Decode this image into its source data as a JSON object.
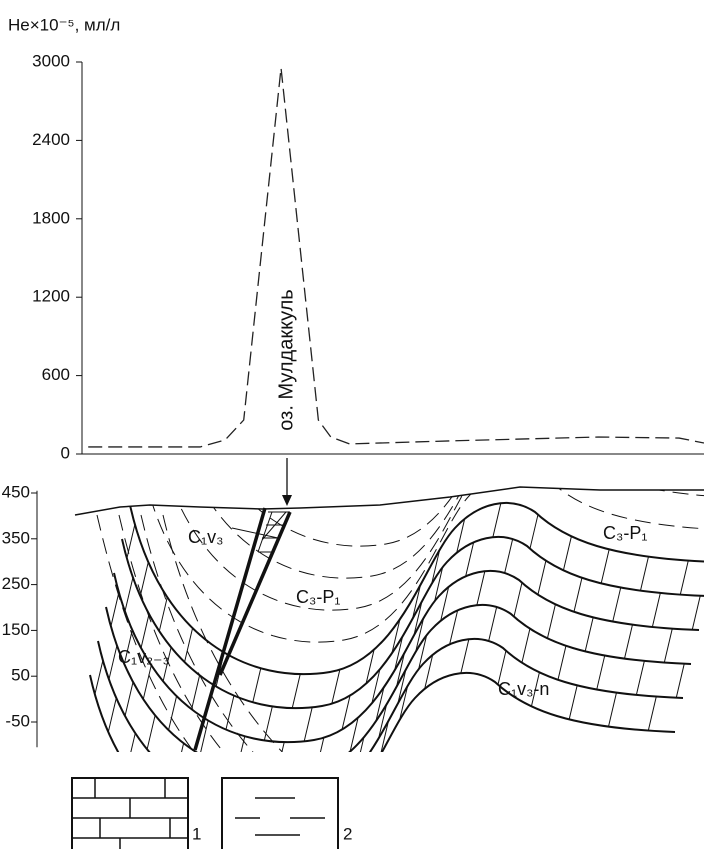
{
  "chart_data": {
    "type": "line",
    "ylabel": "He×10⁻⁵, мл/л",
    "annotation": "оз. Мулдаккуль",
    "x": [
      1,
      19,
      23,
      26,
      32,
      38,
      40,
      43,
      59,
      83,
      96,
      100
    ],
    "xlim": [
      0,
      100
    ],
    "series": [
      {
        "color": "#222222",
        "values": [
          54,
          54,
          107,
          260,
          2954,
          260,
          130,
          77,
          100,
          130,
          122,
          84
        ]
      }
    ],
    "ylim": [
      0,
      3000
    ],
    "yticks": [
      0,
      600,
      1200,
      1800,
      2400,
      3000
    ]
  },
  "section": {
    "ylim": [
      -105,
      455
    ],
    "yticks": [
      -50,
      50,
      150,
      250,
      350,
      450
    ],
    "labels": [
      "C₁v₃",
      "C₃-P₁",
      "C₃-P₁",
      "C₁v₂₋₃",
      "C₁v₃-n"
    ]
  },
  "legend": {
    "labels": [
      "1",
      "2"
    ]
  }
}
